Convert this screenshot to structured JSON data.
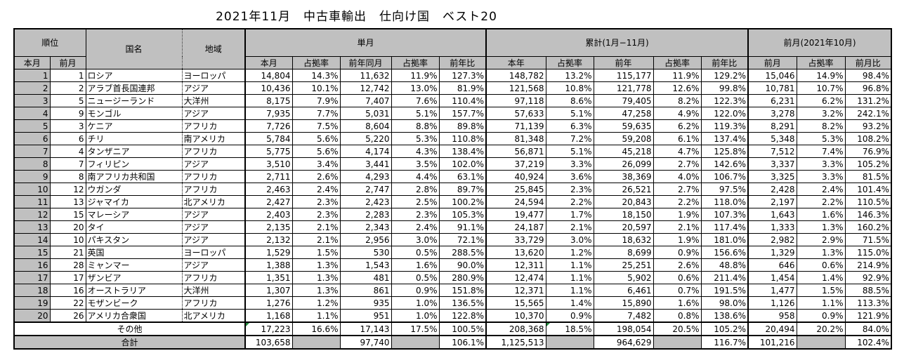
{
  "title": "2021年11月　中古車輸出　仕向け国　ベスト20",
  "headers": {
    "rank": "順位",
    "country": "国名",
    "region": "地域",
    "monthly": "単月",
    "cumulative": "累計(1月−11月)",
    "prev_month_group": "前月(2021年10月)",
    "rank_this": "本月",
    "rank_prev": "前月",
    "m_this": "本月",
    "m_share": "占拠率",
    "m_lastyear": "前年同月",
    "m_share2": "占拠率",
    "m_yoy": "前年比",
    "c_this": "本年",
    "c_share": "占拠率",
    "c_lastyear": "前年",
    "c_share2": "占拠率",
    "c_yoy": "前年比",
    "p_prev": "前月",
    "p_share": "占拠率",
    "p_ratio": "前月比"
  },
  "rows": [
    {
      "rank": "1",
      "prev_rank": "1",
      "country": "ロシア",
      "region": "ヨーロッパ",
      "m_this": "14,804",
      "m_share": "14.3%",
      "m_lastyear": "11,632",
      "m_share2": "11.9%",
      "m_yoy": "127.3%",
      "c_this": "148,782",
      "c_share": "13.2%",
      "c_lastyear": "115,177",
      "c_share2": "11.9%",
      "c_yoy": "129.2%",
      "p_prev": "15,046",
      "p_share": "14.9%",
      "p_ratio": "98.4%"
    },
    {
      "rank": "2",
      "prev_rank": "2",
      "country": "アラブ首長国連邦",
      "region": "アジア",
      "m_this": "10,436",
      "m_share": "10.1%",
      "m_lastyear": "12,742",
      "m_share2": "13.0%",
      "m_yoy": "81.9%",
      "c_this": "121,568",
      "c_share": "10.8%",
      "c_lastyear": "121,778",
      "c_share2": "12.6%",
      "c_yoy": "99.8%",
      "p_prev": "10,781",
      "p_share": "10.7%",
      "p_ratio": "96.8%"
    },
    {
      "rank": "3",
      "prev_rank": "5",
      "country": "ニュージーランド",
      "region": "大洋州",
      "m_this": "8,175",
      "m_share": "7.9%",
      "m_lastyear": "7,407",
      "m_share2": "7.6%",
      "m_yoy": "110.4%",
      "c_this": "97,118",
      "c_share": "8.6%",
      "c_lastyear": "79,405",
      "c_share2": "8.2%",
      "c_yoy": "122.3%",
      "p_prev": "6,231",
      "p_share": "6.2%",
      "p_ratio": "131.2%"
    },
    {
      "rank": "4",
      "prev_rank": "9",
      "country": "モンゴル",
      "region": "アジア",
      "m_this": "7,935",
      "m_share": "7.7%",
      "m_lastyear": "5,031",
      "m_share2": "5.1%",
      "m_yoy": "157.7%",
      "c_this": "57,633",
      "c_share": "5.1%",
      "c_lastyear": "47,258",
      "c_share2": "4.9%",
      "c_yoy": "122.0%",
      "p_prev": "3,278",
      "p_share": "3.2%",
      "p_ratio": "242.1%"
    },
    {
      "rank": "5",
      "prev_rank": "3",
      "country": "ケニア",
      "region": "アフリカ",
      "m_this": "7,726",
      "m_share": "7.5%",
      "m_lastyear": "8,604",
      "m_share2": "8.8%",
      "m_yoy": "89.8%",
      "c_this": "71,139",
      "c_share": "6.3%",
      "c_lastyear": "59,635",
      "c_share2": "6.2%",
      "c_yoy": "119.3%",
      "p_prev": "8,291",
      "p_share": "8.2%",
      "p_ratio": "93.2%"
    },
    {
      "rank": "6",
      "prev_rank": "6",
      "country": "チリ",
      "region": "南アメリカ",
      "m_this": "5,784",
      "m_share": "5.6%",
      "m_lastyear": "5,220",
      "m_share2": "5.3%",
      "m_yoy": "110.8%",
      "c_this": "81,348",
      "c_share": "7.2%",
      "c_lastyear": "59,208",
      "c_share2": "6.1%",
      "c_yoy": "137.4%",
      "p_prev": "5,348",
      "p_share": "5.3%",
      "p_ratio": "108.2%"
    },
    {
      "rank": "7",
      "prev_rank": "4",
      "country": "タンザニア",
      "region": "アフリカ",
      "m_this": "5,775",
      "m_share": "5.6%",
      "m_lastyear": "4,174",
      "m_share2": "4.3%",
      "m_yoy": "138.4%",
      "c_this": "56,871",
      "c_share": "5.1%",
      "c_lastyear": "45,218",
      "c_share2": "4.7%",
      "c_yoy": "125.8%",
      "p_prev": "7,512",
      "p_share": "7.4%",
      "p_ratio": "76.9%"
    },
    {
      "rank": "8",
      "prev_rank": "7",
      "country": "フィリピン",
      "region": "アジア",
      "m_this": "3,510",
      "m_share": "3.4%",
      "m_lastyear": "3,441",
      "m_share2": "3.5%",
      "m_yoy": "102.0%",
      "c_this": "37,219",
      "c_share": "3.3%",
      "c_lastyear": "26,099",
      "c_share2": "2.7%",
      "c_yoy": "142.6%",
      "p_prev": "3,337",
      "p_share": "3.3%",
      "p_ratio": "105.2%"
    },
    {
      "rank": "9",
      "prev_rank": "8",
      "country": "南アフリカ共和国",
      "region": "アフリカ",
      "m_this": "2,711",
      "m_share": "2.6%",
      "m_lastyear": "4,293",
      "m_share2": "4.4%",
      "m_yoy": "63.1%",
      "c_this": "40,924",
      "c_share": "3.6%",
      "c_lastyear": "38,369",
      "c_share2": "4.0%",
      "c_yoy": "106.7%",
      "p_prev": "3,325",
      "p_share": "3.3%",
      "p_ratio": "81.5%"
    },
    {
      "rank": "10",
      "prev_rank": "12",
      "country": "ウガンダ",
      "region": "アフリカ",
      "m_this": "2,463",
      "m_share": "2.4%",
      "m_lastyear": "2,747",
      "m_share2": "2.8%",
      "m_yoy": "89.7%",
      "c_this": "25,845",
      "c_share": "2.3%",
      "c_lastyear": "26,521",
      "c_share2": "2.7%",
      "c_yoy": "97.5%",
      "p_prev": "2,428",
      "p_share": "2.4%",
      "p_ratio": "101.4%"
    },
    {
      "rank": "11",
      "prev_rank": "13",
      "country": "ジャマイカ",
      "region": "北アメリカ",
      "m_this": "2,427",
      "m_share": "2.3%",
      "m_lastyear": "2,423",
      "m_share2": "2.5%",
      "m_yoy": "100.2%",
      "c_this": "24,594",
      "c_share": "2.2%",
      "c_lastyear": "20,843",
      "c_share2": "2.2%",
      "c_yoy": "118.0%",
      "p_prev": "2,197",
      "p_share": "2.2%",
      "p_ratio": "110.5%"
    },
    {
      "rank": "12",
      "prev_rank": "15",
      "country": "マレーシア",
      "region": "アジア",
      "m_this": "2,403",
      "m_share": "2.3%",
      "m_lastyear": "2,283",
      "m_share2": "2.3%",
      "m_yoy": "105.3%",
      "c_this": "19,477",
      "c_share": "1.7%",
      "c_lastyear": "18,150",
      "c_share2": "1.9%",
      "c_yoy": "107.3%",
      "p_prev": "1,643",
      "p_share": "1.6%",
      "p_ratio": "146.3%"
    },
    {
      "rank": "13",
      "prev_rank": "20",
      "country": "タイ",
      "region": "アジア",
      "m_this": "2,135",
      "m_share": "2.1%",
      "m_lastyear": "2,343",
      "m_share2": "2.4%",
      "m_yoy": "91.1%",
      "c_this": "24,187",
      "c_share": "2.1%",
      "c_lastyear": "20,597",
      "c_share2": "2.1%",
      "c_yoy": "117.4%",
      "p_prev": "1,333",
      "p_share": "1.3%",
      "p_ratio": "160.2%"
    },
    {
      "rank": "14",
      "prev_rank": "10",
      "country": "パキスタン",
      "region": "アジア",
      "m_this": "2,132",
      "m_share": "2.1%",
      "m_lastyear": "2,956",
      "m_share2": "3.0%",
      "m_yoy": "72.1%",
      "c_this": "33,729",
      "c_share": "3.0%",
      "c_lastyear": "18,632",
      "c_share2": "1.9%",
      "c_yoy": "181.0%",
      "p_prev": "2,982",
      "p_share": "2.9%",
      "p_ratio": "71.5%"
    },
    {
      "rank": "15",
      "prev_rank": "21",
      "country": "英国",
      "region": "ヨーロッパ",
      "m_this": "1,529",
      "m_share": "1.5%",
      "m_lastyear": "530",
      "m_share2": "0.5%",
      "m_yoy": "288.5%",
      "c_this": "13,620",
      "c_share": "1.2%",
      "c_lastyear": "8,699",
      "c_share2": "0.9%",
      "c_yoy": "156.6%",
      "p_prev": "1,329",
      "p_share": "1.3%",
      "p_ratio": "115.0%"
    },
    {
      "rank": "16",
      "prev_rank": "28",
      "country": "ミャンマー",
      "region": "アジア",
      "m_this": "1,388",
      "m_share": "1.3%",
      "m_lastyear": "1,543",
      "m_share2": "1.6%",
      "m_yoy": "90.0%",
      "c_this": "12,311",
      "c_share": "1.1%",
      "c_lastyear": "25,251",
      "c_share2": "2.6%",
      "c_yoy": "48.8%",
      "p_prev": "646",
      "p_share": "0.6%",
      "p_ratio": "214.9%"
    },
    {
      "rank": "17",
      "prev_rank": "17",
      "country": "ザンビア",
      "region": "アフリカ",
      "m_this": "1,351",
      "m_share": "1.3%",
      "m_lastyear": "481",
      "m_share2": "0.5%",
      "m_yoy": "280.9%",
      "c_this": "12,474",
      "c_share": "1.1%",
      "c_lastyear": "5,902",
      "c_share2": "0.6%",
      "c_yoy": "211.4%",
      "p_prev": "1,454",
      "p_share": "1.4%",
      "p_ratio": "92.9%"
    },
    {
      "rank": "18",
      "prev_rank": "16",
      "country": "オーストラリア",
      "region": "大洋州",
      "m_this": "1,307",
      "m_share": "1.3%",
      "m_lastyear": "861",
      "m_share2": "0.9%",
      "m_yoy": "151.8%",
      "c_this": "12,371",
      "c_share": "1.1%",
      "c_lastyear": "6,461",
      "c_share2": "0.7%",
      "c_yoy": "191.5%",
      "p_prev": "1,477",
      "p_share": "1.5%",
      "p_ratio": "88.5%"
    },
    {
      "rank": "19",
      "prev_rank": "22",
      "country": "モザンビーク",
      "region": "アフリカ",
      "m_this": "1,276",
      "m_share": "1.2%",
      "m_lastyear": "935",
      "m_share2": "1.0%",
      "m_yoy": "136.5%",
      "c_this": "15,565",
      "c_share": "1.4%",
      "c_lastyear": "15,890",
      "c_share2": "1.6%",
      "c_yoy": "98.0%",
      "p_prev": "1,126",
      "p_share": "1.1%",
      "p_ratio": "113.3%"
    },
    {
      "rank": "20",
      "prev_rank": "26",
      "country": "アメリカ合衆国",
      "region": "北アメリカ",
      "m_this": "1,168",
      "m_share": "1.1%",
      "m_lastyear": "951",
      "m_share2": "1.0%",
      "m_yoy": "122.8%",
      "c_this": "10,370",
      "c_share": "0.9%",
      "c_lastyear": "7,482",
      "c_share2": "0.8%",
      "c_yoy": "138.6%",
      "p_prev": "958",
      "p_share": "0.9%",
      "p_ratio": "121.9%"
    }
  ],
  "others": {
    "label": "その他",
    "m_this": "17,223",
    "m_share": "16.6%",
    "m_lastyear": "17,143",
    "m_share2": "17.5%",
    "m_yoy": "100.5%",
    "c_this": "208,368",
    "c_share": "18.5%",
    "c_lastyear": "198,054",
    "c_share2": "20.5%",
    "c_yoy": "105.2%",
    "p_prev": "20,494",
    "p_share": "20.2%",
    "p_ratio": "84.0%"
  },
  "total": {
    "label": "合計",
    "m_this": "103,658",
    "m_lastyear": "97,740",
    "m_yoy": "106.1%",
    "c_this": "1,125,513",
    "c_lastyear": "964,629",
    "c_yoy": "116.7%",
    "p_prev": "101,216",
    "p_ratio": "102.4%"
  }
}
